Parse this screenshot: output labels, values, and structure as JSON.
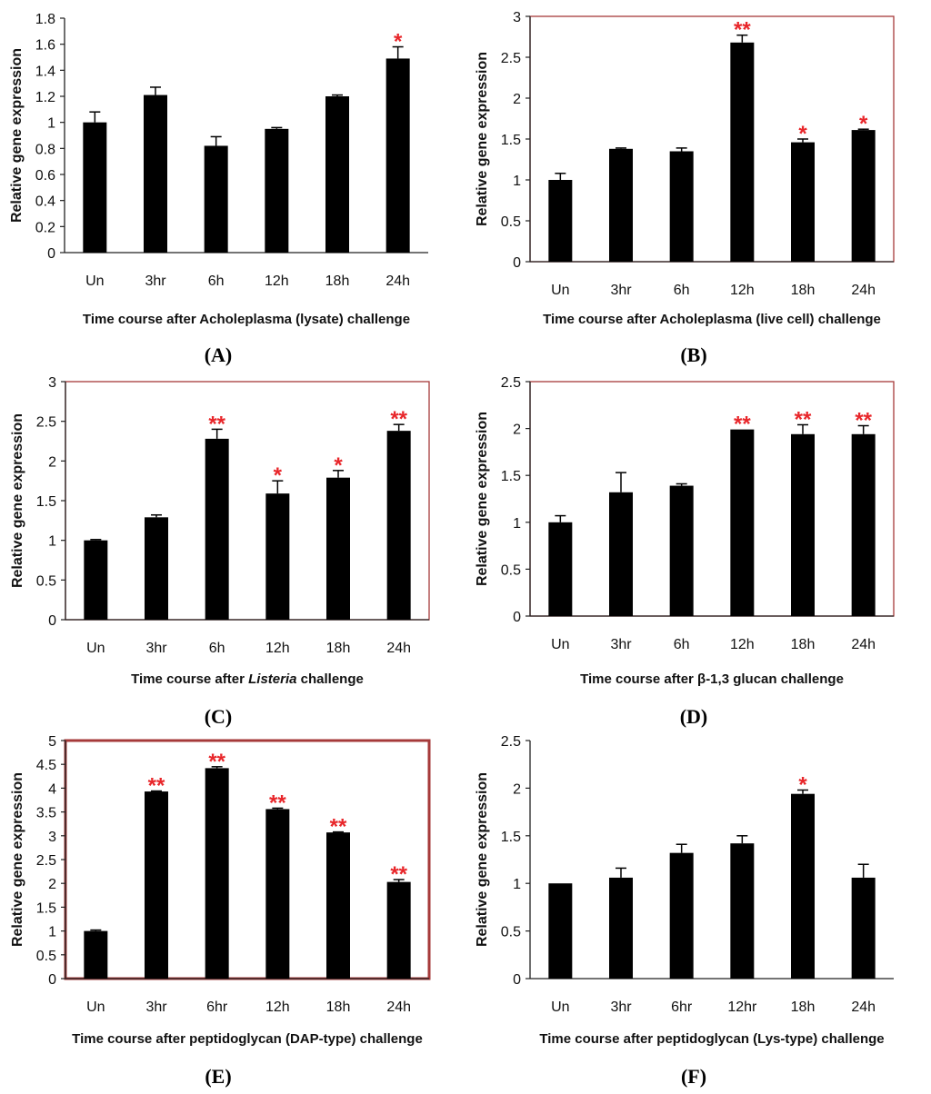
{
  "chart_data": [
    {
      "type": "bar",
      "panel": "(A)",
      "xlabel": "Time course after Acholeplasma (lysate) challenge",
      "xlabel_italic": "",
      "xlabel_suffix": "",
      "ylabel": "Relative gene expression",
      "categories": [
        "Un",
        "3hr",
        "6h",
        "12h",
        "18h",
        "24h"
      ],
      "values": [
        1.0,
        1.21,
        0.82,
        0.95,
        1.2,
        1.49
      ],
      "errors": [
        0.08,
        0.06,
        0.07,
        0.01,
        0.01,
        0.09
      ],
      "significance": [
        "",
        "",
        "",
        "",
        "",
        "*"
      ],
      "ylim": [
        0,
        1.8
      ],
      "yticks": [
        "0",
        "0.2",
        "0.4",
        "0.6",
        "0.8",
        "1",
        "1.2",
        "1.4",
        "1.6",
        "1.8"
      ],
      "frame_color": "#ffffff",
      "bar_color": "#000000"
    },
    {
      "type": "bar",
      "panel": "(B)",
      "xlabel": "Time course after Acholeplasma (live cell) challenge",
      "xlabel_italic": "",
      "xlabel_suffix": "",
      "ylabel": "Relative gene expression",
      "categories": [
        "Un",
        "3hr",
        "6h",
        "12h",
        "18h",
        "24h"
      ],
      "values": [
        1.0,
        1.38,
        1.35,
        2.68,
        1.46,
        1.61
      ],
      "errors": [
        0.08,
        0.01,
        0.04,
        0.09,
        0.04,
        0.01
      ],
      "significance": [
        "",
        "",
        "",
        "**",
        "*",
        "*"
      ],
      "ylim": [
        0,
        3
      ],
      "yticks": [
        "0",
        "0.5",
        "1",
        "1.5",
        "2",
        "2.5",
        "3"
      ],
      "frame_color": "#a63a3a",
      "bar_color": "#000000"
    },
    {
      "type": "bar",
      "panel": "(C)",
      "xlabel": "Time course after ",
      "xlabel_italic": "Listeria",
      "xlabel_suffix": " challenge",
      "ylabel": "Relative gene expression",
      "categories": [
        "Un",
        "3hr",
        "6h",
        "12h",
        "18h",
        "24h"
      ],
      "values": [
        1.0,
        1.29,
        2.28,
        1.59,
        1.79,
        2.38
      ],
      "errors": [
        0.01,
        0.03,
        0.12,
        0.16,
        0.09,
        0.08
      ],
      "significance": [
        "",
        "",
        "**",
        "*",
        "*",
        "**"
      ],
      "ylim": [
        0,
        3
      ],
      "yticks": [
        "0",
        "0.5",
        "1",
        "1.5",
        "2",
        "2.5",
        "3"
      ],
      "frame_color": "#a63a3a",
      "bar_color": "#000000"
    },
    {
      "type": "bar",
      "panel": "(D)",
      "xlabel": "Time course after β-1,3 glucan challenge",
      "xlabel_italic": "",
      "xlabel_suffix": "",
      "ylabel": "Relative gene expression",
      "categories": [
        "Un",
        "3hr",
        "6h",
        "12h",
        "18h",
        "24h"
      ],
      "values": [
        1.0,
        1.32,
        1.39,
        1.99,
        1.94,
        1.94
      ],
      "errors": [
        0.07,
        0.21,
        0.02,
        0.0,
        0.1,
        0.09
      ],
      "significance": [
        "",
        "",
        "",
        "**",
        "**",
        "**"
      ],
      "ylim": [
        0,
        2.5
      ],
      "yticks": [
        "0",
        "0.5",
        "1",
        "1.5",
        "2",
        "2.5"
      ],
      "frame_color": "#a63a3a",
      "bar_color": "#000000"
    },
    {
      "type": "bar",
      "panel": "(E)",
      "xlabel": "Time course after peptidoglycan (DAP-type) challenge",
      "xlabel_italic": "",
      "xlabel_suffix": "",
      "ylabel": "Relative gene expression",
      "categories": [
        "Un",
        "3hr",
        "6hr",
        "12h",
        "18h",
        "24h"
      ],
      "values": [
        1.0,
        3.93,
        4.42,
        3.56,
        3.07,
        2.03
      ],
      "errors": [
        0.02,
        0.01,
        0.03,
        0.02,
        0.01,
        0.05
      ],
      "significance": [
        "",
        "**",
        "**",
        "**",
        "**",
        "**"
      ],
      "ylim": [
        0,
        5
      ],
      "yticks": [
        "0",
        "0.5",
        "1",
        "1.5",
        "2",
        "2.5",
        "3",
        "3.5",
        "4",
        "4.5",
        "5"
      ],
      "frame_color": "#a63a3a",
      "bar_color": "#000000"
    },
    {
      "type": "bar",
      "panel": "(F)",
      "xlabel": "Time course after peptidoglycan (Lys-type) challenge",
      "xlabel_italic": "",
      "xlabel_suffix": "",
      "ylabel": "Relative gene expression",
      "categories": [
        "Un",
        "3hr",
        "6hr",
        "12hr",
        "18h",
        "24h"
      ],
      "values": [
        1.0,
        1.06,
        1.32,
        1.42,
        1.94,
        1.06
      ],
      "errors": [
        0.0,
        0.1,
        0.09,
        0.08,
        0.04,
        0.14
      ],
      "significance": [
        "",
        "",
        "",
        "",
        "*",
        ""
      ],
      "ylim": [
        0,
        2.5
      ],
      "yticks": [
        "0",
        "0.5",
        "1",
        "1.5",
        "2",
        "2.5"
      ],
      "frame_color": "#ffffff",
      "bar_color": "#000000"
    }
  ]
}
